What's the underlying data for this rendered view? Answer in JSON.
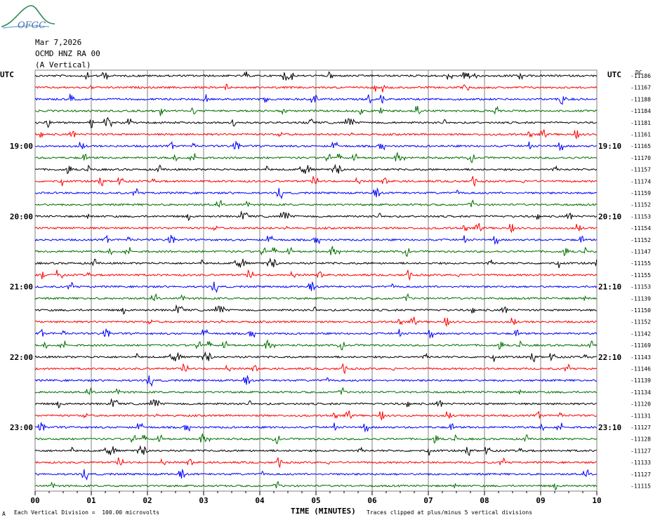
{
  "logo": {
    "text": "OFGC"
  },
  "header": {
    "date": "Mar 7,2026",
    "station": "OCMD HNZ RA 00",
    "component": "(A Vertical)"
  },
  "left_axis": {
    "tz_label": "UTC",
    "hour_labels": [
      "19:00",
      "20:00",
      "21:00",
      "22:00",
      "23:00"
    ]
  },
  "right_axis": {
    "tz_label": "UTC",
    "dc_label": "DC",
    "hour_labels": [
      "19:10",
      "20:10",
      "21:10",
      "22:10",
      "23:10"
    ]
  },
  "x_axis": {
    "title": "TIME (MINUTES)",
    "ticks": [
      "00",
      "01",
      "02",
      "03",
      "04",
      "05",
      "06",
      "07",
      "08",
      "09",
      "10"
    ]
  },
  "footer": {
    "scale_note": "Each Vertical Division =  100.00 microvolts",
    "clip_note": "Traces clipped at plus/minus 5 vertical divisions",
    "corner_mark": "A"
  },
  "colors": {
    "trace_cycle": [
      "#000000",
      "#ff0000",
      "#0000ff",
      "#007000"
    ],
    "grid": "#808080",
    "logo": "#2e8b57"
  },
  "chart_data": {
    "type": "line",
    "title": "OCMD HNZ RA 00 (A Vertical)",
    "xlabel": "TIME (MINUTES)",
    "xlim": [
      0,
      10
    ],
    "trace_minutes": 10,
    "trace_count": 36,
    "dc_offsets": [
      -11186,
      -11167,
      -11188,
      -11184,
      -11181,
      -11161,
      -11165,
      -11170,
      -11157,
      -11174,
      -11159,
      -11152,
      -11153,
      -11154,
      -11152,
      -11147,
      -11155,
      -11155,
      -11153,
      -11139,
      -11150,
      -11152,
      -11142,
      -11169,
      -11143,
      -11146,
      -11139,
      -11134,
      -11120,
      -11131,
      -11127,
      -11128,
      -11127,
      -11133,
      -11127,
      -11115
    ],
    "trace_colors": [
      "black",
      "red",
      "blue",
      "green",
      "black",
      "red",
      "blue",
      "green",
      "black",
      "red",
      "blue",
      "green",
      "black",
      "red",
      "blue",
      "green",
      "black",
      "red",
      "blue",
      "green",
      "black",
      "red",
      "blue",
      "green",
      "black",
      "red",
      "blue",
      "green",
      "black",
      "red",
      "blue",
      "green",
      "black",
      "red",
      "blue",
      "green"
    ],
    "grid": true
  }
}
